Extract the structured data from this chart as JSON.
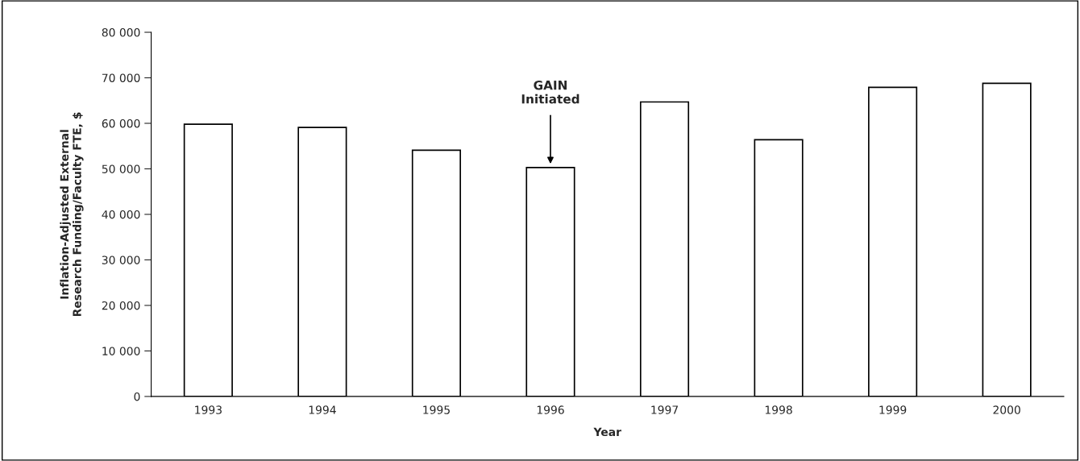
{
  "chart_data": {
    "type": "bar",
    "xlabel": "Year",
    "ylabel": "Inflation-Adjusted External\nResearch Funding/Faculty FTE, $",
    "categories": [
      "1993",
      "1994",
      "1995",
      "1996",
      "1997",
      "1998",
      "1999",
      "2000"
    ],
    "values": [
      59800,
      59100,
      54100,
      50300,
      64700,
      56400,
      67900,
      68800
    ],
    "color": "#ffffff",
    "ylim": [
      0,
      80000
    ],
    "yticks": [
      {
        "value": 0,
        "label": "0"
      },
      {
        "value": 10000,
        "label": "10 000"
      },
      {
        "value": 20000,
        "label": "20 000"
      },
      {
        "value": 30000,
        "label": "30 000"
      },
      {
        "value": 40000,
        "label": "40 000"
      },
      {
        "value": 50000,
        "label": "50 000"
      },
      {
        "value": 60000,
        "label": "60 000"
      },
      {
        "value": 70000,
        "label": "70 000"
      },
      {
        "value": 80000,
        "label": "80 000"
      }
    ],
    "annotations": [
      {
        "text": "GAIN\nInitiated",
        "x": "1996",
        "y": 50300
      }
    ],
    "grid": false
  }
}
